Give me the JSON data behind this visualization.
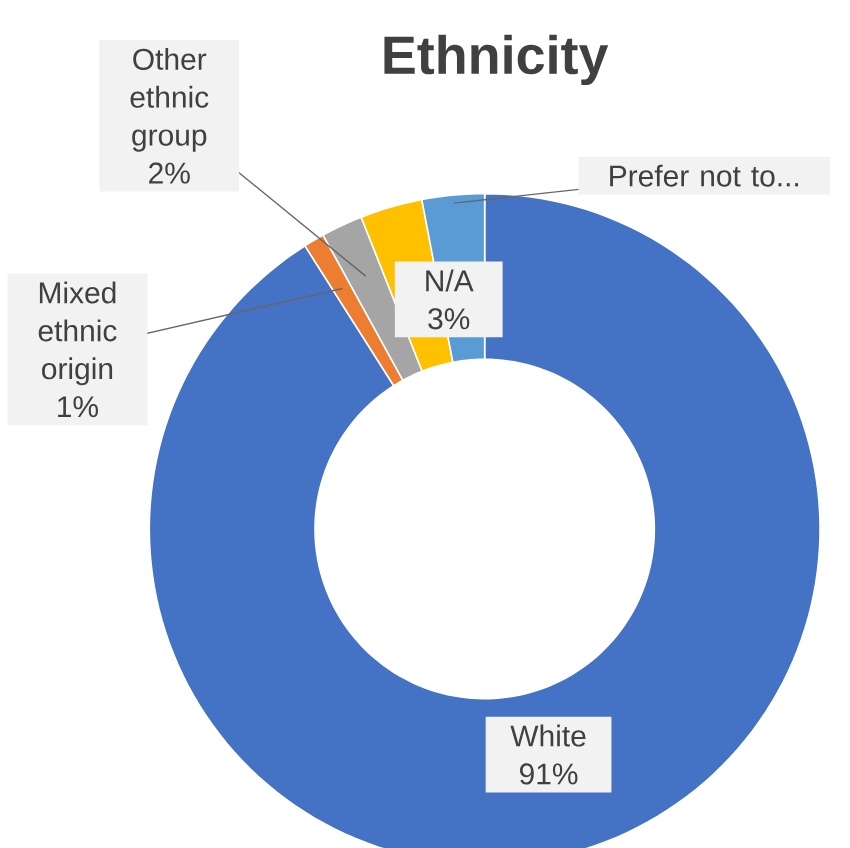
{
  "chart_data": {
    "type": "donut",
    "title": "Ethnicity",
    "categories": [
      "White",
      "Mixed ethnic origin",
      "Other ethnic group",
      "N/A",
      "Prefer not to..."
    ],
    "values": [
      91,
      1,
      2,
      3,
      3
    ],
    "colors": [
      "#4472c4",
      "#ed7d31",
      "#a5a5a5",
      "#ffc000",
      "#5b9bd5"
    ],
    "value_labels": [
      "91%",
      "1%",
      "2%",
      "3%",
      null
    ]
  }
}
